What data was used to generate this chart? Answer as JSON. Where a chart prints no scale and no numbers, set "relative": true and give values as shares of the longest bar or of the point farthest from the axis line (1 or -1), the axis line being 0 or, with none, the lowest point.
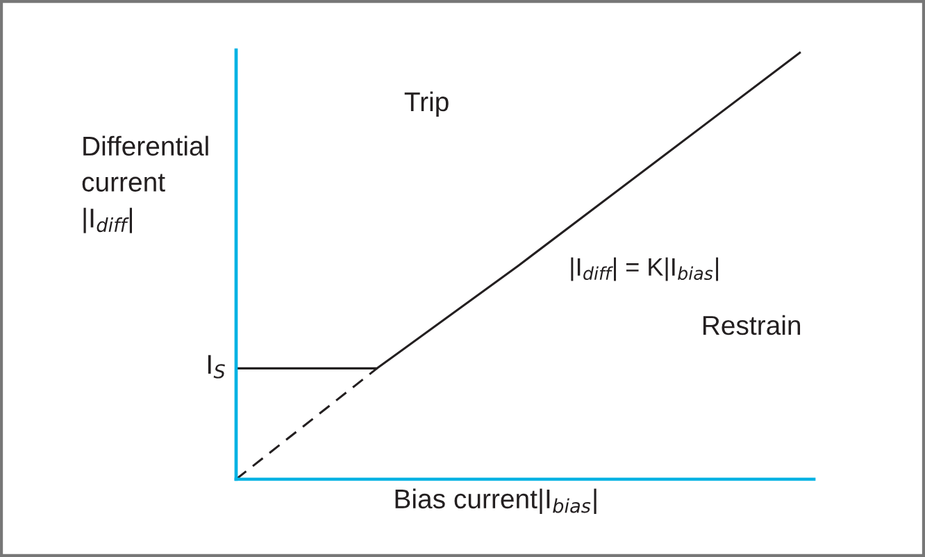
{
  "chart_data": {
    "type": "line",
    "relative": true,
    "tick_labels": false,
    "xlabel": "Bias current|I$_{bias}$|",
    "ylabel": "Differential\ncurrent\n|I$_{diff}$|",
    "annotations": [
      "Trip",
      "Restrain",
      "|I$_{diff}$| = K|I$_{bias}$|",
      "I$_{S}$"
    ],
    "categories": [
      null,
      null,
      null,
      null,
      null
    ],
    "series": [
      {
        "color": "#231f20",
        "values": [
          0.26,
          0.26,
          0.5,
          0.75,
          1
        ],
        "line_style": "solid"
      },
      {
        "color": "#231f20",
        "values": [
          0,
          0.26,
          null,
          null,
          null
        ],
        "line_style": "dashed"
      }
    ]
  }
}
